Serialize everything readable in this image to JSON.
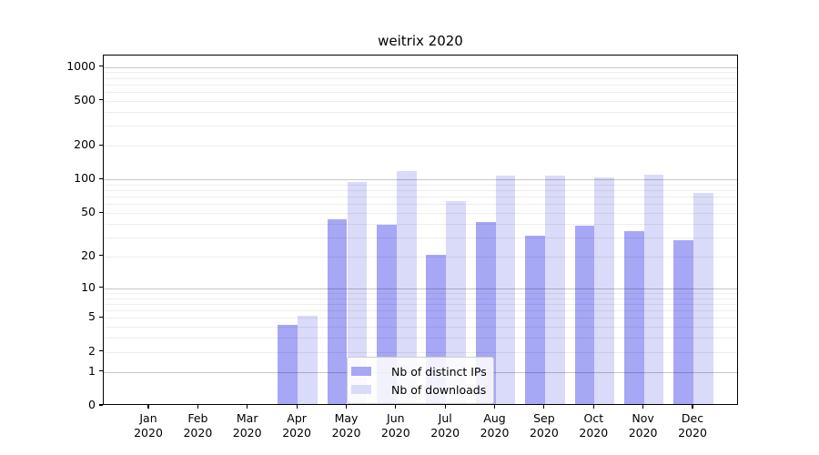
{
  "chart_data": {
    "type": "bar",
    "title": "weitrix 2020",
    "year_label": "2020",
    "categories": [
      "Jan",
      "Feb",
      "Mar",
      "Apr",
      "May",
      "Jun",
      "Jul",
      "Aug",
      "Sep",
      "Oct",
      "Nov",
      "Dec"
    ],
    "series": [
      {
        "name": "Nb of distinct IPs",
        "color": "#a6a7f5",
        "values": [
          0,
          0,
          0,
          4,
          42,
          38,
          20,
          40,
          30,
          37,
          33,
          27
        ]
      },
      {
        "name": "Nb of downloads",
        "color": "#dadaf9",
        "values": [
          0,
          0,
          0,
          5,
          91,
          114,
          62,
          105,
          104,
          100,
          106,
          73
        ]
      }
    ],
    "y_scale": "log1p",
    "y_ticks": [
      0,
      1,
      2,
      5,
      10,
      20,
      50,
      100,
      200,
      500,
      1000
    ],
    "y_max": 1000,
    "grid": true,
    "legend_position": "lower center",
    "colors": {
      "axis": "#000000",
      "grid_major": "#c7c7c7",
      "grid_minor": "#ededed",
      "legend_border": "#cccccc"
    }
  }
}
